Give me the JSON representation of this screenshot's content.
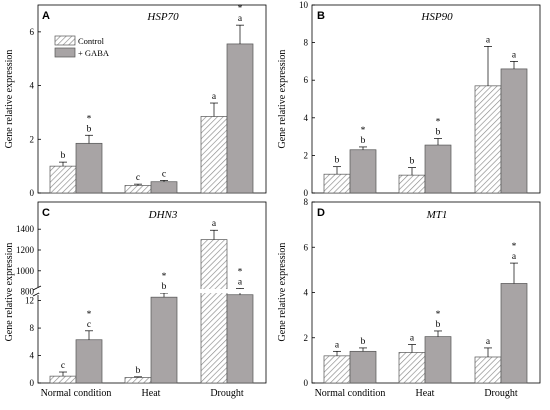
{
  "colors": {
    "control_fill": "hatched",
    "gaba_fill": "#a8a4a5",
    "axis": "#000000"
  },
  "legend": {
    "control": "Control",
    "gaba": "+ GABA"
  },
  "chart_data": [
    {
      "panel": "A",
      "title": "HSP70",
      "type": "bar",
      "ylabel": "Gene relative expression",
      "ylim": [
        0,
        7
      ],
      "yticks": [
        0,
        2,
        4,
        6
      ],
      "categories": [
        "Normal condition",
        "Heat",
        "Drought"
      ],
      "series": [
        {
          "name": "Control",
          "values": [
            1.0,
            0.28,
            2.85
          ],
          "errors": [
            0.15,
            0.05,
            0.5
          ],
          "letters": [
            "b",
            "c",
            "a"
          ],
          "stars": [
            false,
            false,
            false
          ]
        },
        {
          "name": "+ GABA",
          "values": [
            1.85,
            0.42,
            5.55
          ],
          "errors": [
            0.3,
            0.05,
            0.7
          ],
          "letters": [
            "b",
            "c",
            "a"
          ],
          "stars": [
            true,
            false,
            true
          ]
        }
      ]
    },
    {
      "panel": "B",
      "title": "HSP90",
      "type": "bar",
      "ylabel": "Gene relative expression",
      "ylim": [
        0,
        10
      ],
      "yticks": [
        0,
        2,
        4,
        6,
        8,
        10
      ],
      "categories": [
        "Normal condition",
        "Heat",
        "Drought"
      ],
      "series": [
        {
          "name": "Control",
          "values": [
            1.0,
            0.95,
            5.7
          ],
          "errors": [
            0.4,
            0.4,
            2.1
          ],
          "letters": [
            "b",
            "b",
            "a"
          ],
          "stars": [
            false,
            false,
            false
          ]
        },
        {
          "name": "+ GABA",
          "values": [
            2.3,
            2.55,
            6.6
          ],
          "errors": [
            0.15,
            0.35,
            0.4
          ],
          "letters": [
            "b",
            "b",
            "a"
          ],
          "stars": [
            true,
            true,
            false
          ]
        }
      ]
    },
    {
      "panel": "C",
      "title": "DHN3",
      "type": "bar",
      "ylabel": "Gene relative expression",
      "broken_axis": true,
      "lower_ylim": [
        0,
        15
      ],
      "lower_yticks": [
        0,
        4,
        8,
        12
      ],
      "upper_ylim": [
        700,
        1450
      ],
      "upper_yticks": [
        800,
        1000,
        1200,
        1400
      ],
      "categories": [
        "Normal condition",
        "Heat",
        "Drought"
      ],
      "series": [
        {
          "name": "Control",
          "values": [
            1.0,
            0.8,
            1300
          ],
          "errors": [
            0.6,
            0.1,
            90
          ],
          "letters": [
            "c",
            "b",
            "a"
          ],
          "stars": [
            false,
            false,
            false
          ]
        },
        {
          "name": "+ GABA",
          "values": [
            6.3,
            12.5,
            770
          ],
          "errors": [
            1.3,
            0.6,
            60
          ],
          "letters": [
            "c",
            "b",
            "a"
          ],
          "stars": [
            true,
            true,
            true
          ]
        }
      ]
    },
    {
      "panel": "D",
      "title": "MT1",
      "type": "bar",
      "ylabel": "Gene relative expression",
      "ylim": [
        0,
        8
      ],
      "yticks": [
        0,
        2,
        4,
        6,
        8
      ],
      "categories": [
        "Normal condition",
        "Heat",
        "Drought"
      ],
      "series": [
        {
          "name": "Control",
          "values": [
            1.2,
            1.35,
            1.15
          ],
          "errors": [
            0.2,
            0.35,
            0.4
          ],
          "letters": [
            "a",
            "a",
            "a"
          ],
          "stars": [
            false,
            false,
            false
          ]
        },
        {
          "name": "+ GABA",
          "values": [
            1.4,
            2.05,
            4.4
          ],
          "errors": [
            0.15,
            0.25,
            0.9
          ],
          "letters": [
            "b",
            "b",
            "a"
          ],
          "stars": [
            false,
            true,
            true
          ]
        }
      ]
    }
  ]
}
